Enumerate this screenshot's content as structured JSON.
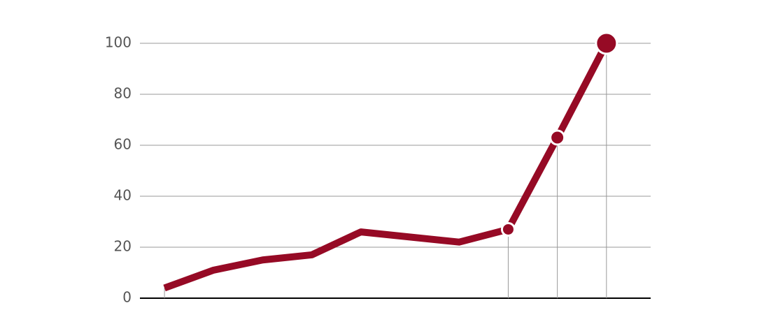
{
  "chart_data": {
    "type": "line",
    "x": [
      0,
      1,
      2,
      3,
      4,
      6,
      7,
      8,
      9
    ],
    "values": [
      4,
      11,
      15,
      17,
      26,
      22,
      27,
      63,
      100
    ],
    "color": "#960a25",
    "markers": [
      6,
      7,
      8
    ],
    "xlim": [
      -0.5,
      9.9
    ],
    "ylim": [
      0,
      100
    ],
    "yticks": [
      0,
      20,
      40,
      60,
      80,
      100
    ],
    "grid": true
  }
}
